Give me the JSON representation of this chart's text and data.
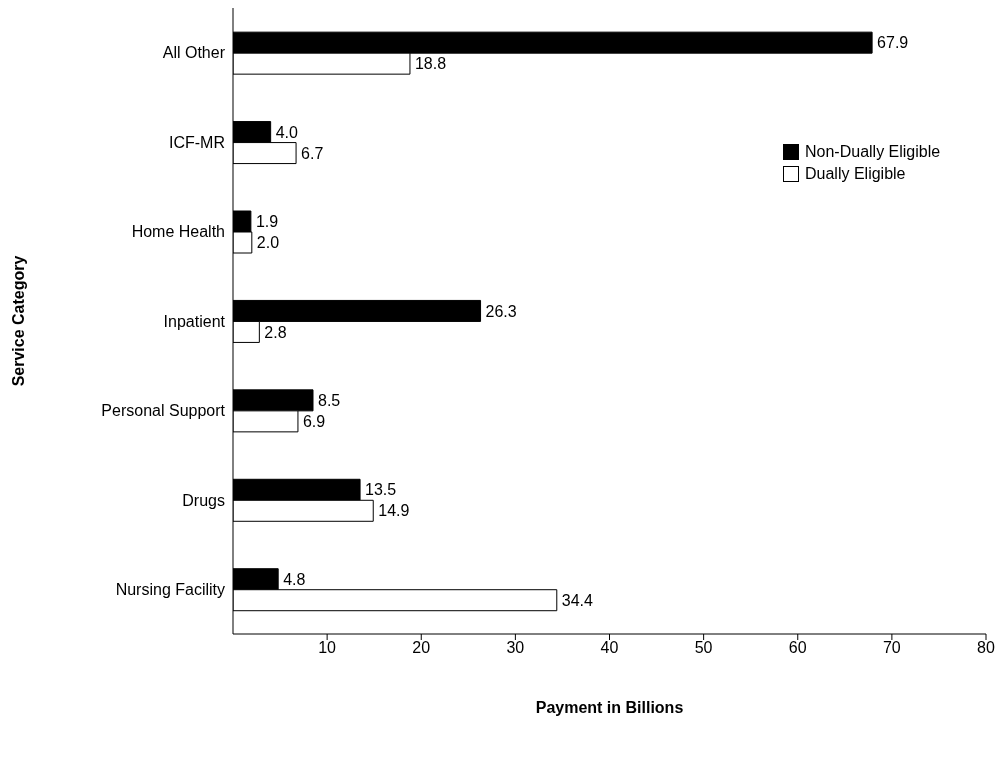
{
  "chart_data": {
    "type": "bar",
    "orientation": "horizontal",
    "categories": [
      "All Other",
      "ICF-MR",
      "Home Health",
      "Inpatient",
      "Personal Support",
      "Drugs",
      "Nursing Facility"
    ],
    "series": [
      {
        "name": "Non-Dually Eligible",
        "color": "#000000",
        "values": [
          67.9,
          4.0,
          1.9,
          26.3,
          8.5,
          13.5,
          4.8
        ],
        "value_labels": [
          "67.9",
          "4.0",
          "1.9",
          "26.3",
          "8.5",
          "13.5",
          "4.8"
        ]
      },
      {
        "name": "Dually Eligible",
        "color": "#ffffff",
        "values": [
          18.8,
          6.7,
          2.0,
          2.8,
          6.9,
          14.9,
          34.4
        ],
        "value_labels": [
          "18.8",
          "6.7",
          "2.0",
          "2.8",
          "6.9",
          "14.9",
          "34.4"
        ]
      }
    ],
    "xlabel": "Payment in Billions",
    "ylabel": "Service Category",
    "xlim": [
      0,
      80
    ],
    "xticks": [
      10,
      20,
      30,
      40,
      50,
      60,
      70,
      80
    ],
    "legend": "top right",
    "grid": false
  }
}
